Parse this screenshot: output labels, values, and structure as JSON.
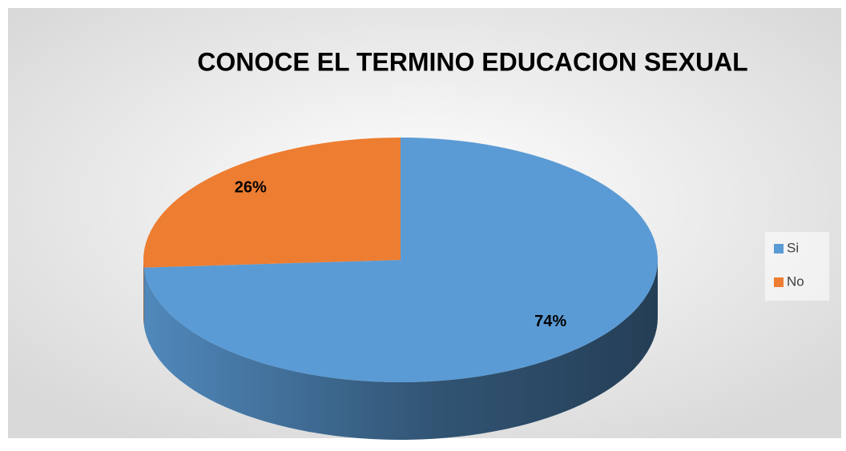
{
  "chart_data": {
    "type": "pie",
    "title": "CONOCE EL TERMINO EDUCACION SEXUAL",
    "categories": [
      "Si",
      "No"
    ],
    "values": [
      74,
      26
    ],
    "value_labels": [
      "74%",
      "26%"
    ],
    "colors": [
      "#5b9bd5",
      "#ed7d31"
    ],
    "legend": "right"
  }
}
